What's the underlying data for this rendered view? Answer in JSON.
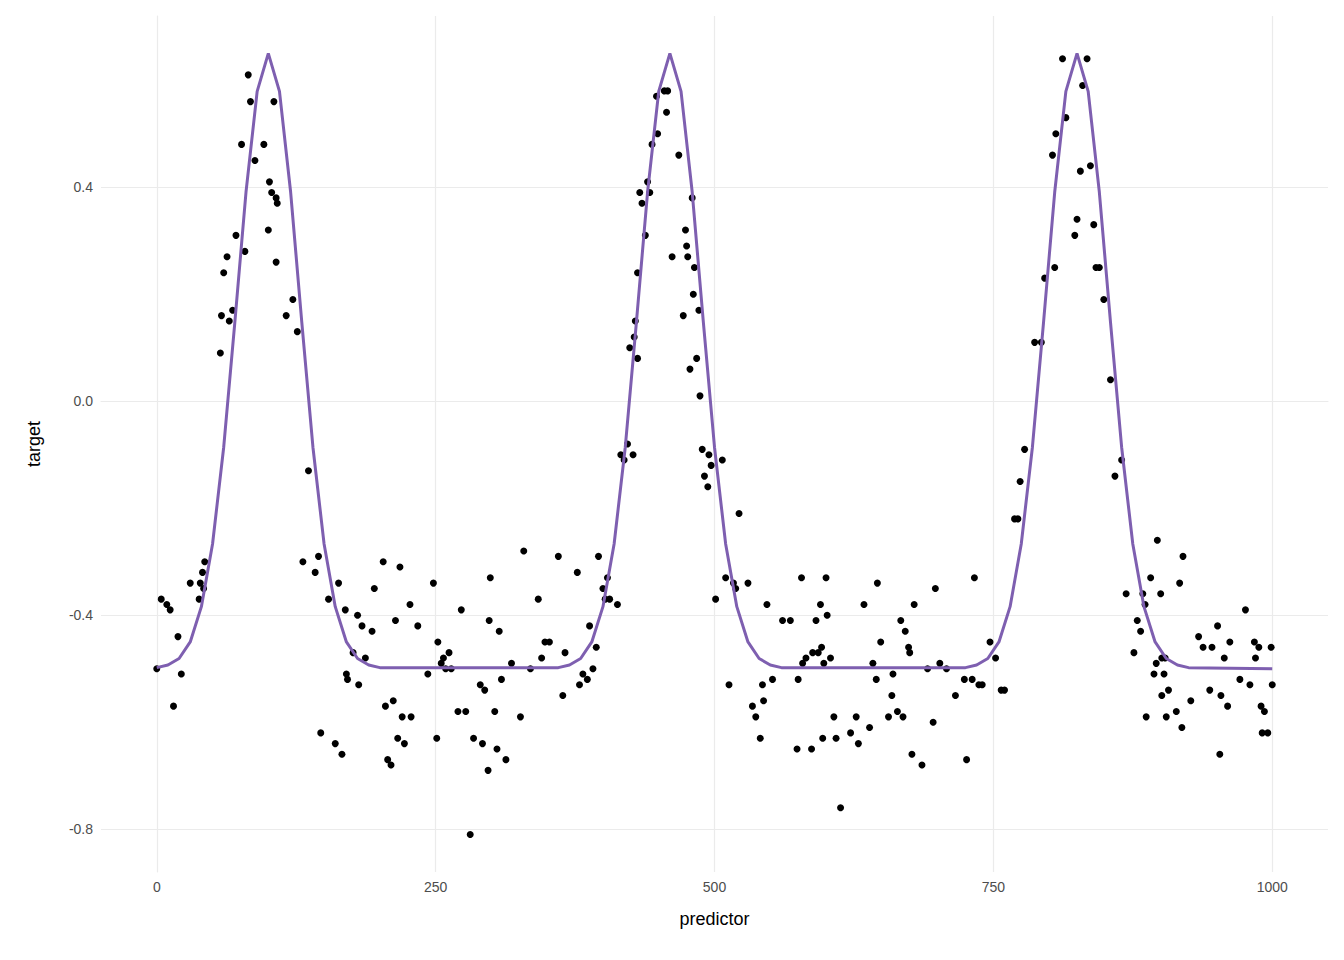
{
  "chart_data": {
    "type": "scatter",
    "x_label": "predictor",
    "y_label": "target",
    "xlim": [
      -50,
      1050
    ],
    "ylim": [
      -0.88,
      0.72
    ],
    "xticks": [
      0,
      250,
      500,
      750,
      1000
    ],
    "yticks": [
      -0.8,
      -0.4,
      {
        "value": 0,
        "label": "0.0"
      },
      0.4
    ],
    "grid": true,
    "series": [
      {
        "type": "scatter",
        "color": "#000000",
        "marker": "circle",
        "x": [
          0,
          4,
          9,
          12,
          15,
          19,
          22,
          30,
          38,
          39,
          41,
          42,
          43,
          57,
          58,
          60,
          63,
          65,
          68,
          71,
          76,
          79,
          82,
          84,
          88,
          96,
          100,
          101,
          103,
          105,
          107,
          108,
          107,
          116,
          122,
          126,
          131,
          136,
          142,
          145,
          147,
          154,
          160,
          163,
          166,
          169,
          170,
          171,
          176,
          180,
          181,
          184,
          187,
          193,
          195,
          203,
          205,
          207,
          210,
          212,
          214,
          216,
          218,
          220,
          222,
          227,
          228,
          234,
          243,
          248,
          251,
          252,
          255,
          257,
          259,
          262,
          264,
          270,
          273,
          277,
          281,
          284,
          290,
          292,
          294,
          297,
          298,
          299,
          303,
          305,
          307,
          309,
          313,
          318,
          326,
          329,
          335,
          342,
          345,
          348,
          352,
          360,
          364,
          366,
          377,
          379,
          382,
          386,
          388,
          391,
          394,
          396,
          400,
          402,
          404,
          406,
          413,
          416,
          419,
          422,
          424,
          427,
          428,
          429,
          431,
          431,
          433,
          435,
          438,
          440,
          442,
          444,
          448,
          449,
          455,
          458,
          457,
          462,
          468,
          472,
          474,
          475,
          476,
          478,
          480,
          481,
          482,
          484,
          486,
          487,
          489,
          491,
          494,
          495,
          497,
          501,
          507,
          510,
          513,
          517,
          519,
          522,
          530,
          534,
          537,
          541,
          543,
          544,
          547,
          552,
          561,
          568,
          574,
          575,
          578,
          579,
          582,
          587,
          588,
          591,
          593,
          595,
          596,
          597,
          598,
          600,
          601,
          604,
          607,
          609,
          613,
          622,
          627,
          629,
          634,
          639,
          642,
          645,
          646,
          649,
          656,
          659,
          660,
          664,
          667,
          669,
          671,
          674,
          675,
          677,
          679,
          686,
          691,
          696,
          698,
          702,
          708,
          716,
          724,
          726,
          731,
          733,
          737,
          740,
          747,
          752,
          757,
          760,
          769,
          772,
          774,
          778,
          787,
          793,
          796,
          803,
          806,
          805,
          815,
          812,
          823,
          825,
          828,
          830,
          834,
          837,
          840,
          842,
          845,
          849,
          855,
          859,
          865,
          869,
          876,
          879,
          882,
          884,
          886,
          887,
          891,
          894,
          896,
          897,
          900,
          901,
          901,
          903,
          904,
          905,
          907,
          914,
          917,
          919,
          920,
          927,
          934,
          938,
          944,
          946,
          951,
          953,
          954,
          957,
          960,
          962,
          971,
          976,
          980,
          984,
          985,
          988,
          990,
          991,
          993,
          996,
          999,
          1000
        ],
        "values": [
          -0.5,
          -0.37,
          -0.38,
          -0.39,
          -0.57,
          -0.44,
          -0.51,
          -0.34,
          -0.37,
          -0.34,
          -0.32,
          -0.35,
          -0.3,
          0.09,
          0.16,
          0.24,
          0.27,
          0.15,
          0.17,
          0.31,
          0.48,
          0.28,
          0.61,
          0.56,
          0.45,
          0.48,
          0.32,
          0.41,
          0.39,
          0.56,
          0.38,
          0.37,
          0.26,
          0.16,
          0.19,
          0.13,
          -0.3,
          -0.13,
          -0.32,
          -0.29,
          -0.62,
          -0.37,
          -0.64,
          -0.34,
          -0.66,
          -0.39,
          -0.51,
          -0.52,
          -0.47,
          -0.4,
          -0.53,
          -0.42,
          -0.48,
          -0.43,
          -0.35,
          -0.3,
          -0.57,
          -0.67,
          -0.68,
          -0.56,
          -0.41,
          -0.63,
          -0.31,
          -0.59,
          -0.64,
          -0.38,
          -0.59,
          -0.42,
          -0.51,
          -0.34,
          -0.63,
          -0.45,
          -0.49,
          -0.48,
          -0.5,
          -0.47,
          -0.5,
          -0.58,
          -0.39,
          -0.58,
          -0.81,
          -0.63,
          -0.53,
          -0.64,
          -0.54,
          -0.69,
          -0.41,
          -0.33,
          -0.58,
          -0.65,
          -0.43,
          -0.52,
          -0.67,
          -0.49,
          -0.59,
          -0.28,
          -0.5,
          -0.37,
          -0.48,
          -0.45,
          -0.45,
          -0.29,
          -0.55,
          -0.47,
          -0.32,
          -0.53,
          -0.51,
          -0.52,
          -0.42,
          -0.5,
          -0.46,
          -0.29,
          -0.35,
          -0.37,
          -0.33,
          -0.37,
          -0.38,
          -0.1,
          -0.11,
          -0.08,
          0.1,
          -0.1,
          0.12,
          0.15,
          0.08,
          0.24,
          0.39,
          0.37,
          0.31,
          0.41,
          0.39,
          0.48,
          0.57,
          0.5,
          0.58,
          0.58,
          0.54,
          0.27,
          0.46,
          0.16,
          0.32,
          0.29,
          0.27,
          0.06,
          0.38,
          0.2,
          0.25,
          0.08,
          0.17,
          0.01,
          -0.09,
          -0.14,
          -0.16,
          -0.1,
          -0.12,
          -0.37,
          -0.11,
          -0.33,
          -0.53,
          -0.34,
          -0.35,
          -0.21,
          -0.34,
          -0.57,
          -0.59,
          -0.63,
          -0.53,
          -0.56,
          -0.38,
          -0.52,
          -0.41,
          -0.41,
          -0.65,
          -0.52,
          -0.33,
          -0.49,
          -0.48,
          -0.65,
          -0.47,
          -0.41,
          -0.47,
          -0.38,
          -0.46,
          -0.63,
          -0.49,
          -0.33,
          -0.4,
          -0.48,
          -0.59,
          -0.63,
          -0.76,
          -0.62,
          -0.59,
          -0.64,
          -0.38,
          -0.61,
          -0.49,
          -0.52,
          -0.34,
          -0.45,
          -0.59,
          -0.55,
          -0.51,
          -0.58,
          -0.41,
          -0.59,
          -0.43,
          -0.46,
          -0.47,
          -0.66,
          -0.38,
          -0.68,
          -0.5,
          -0.6,
          -0.35,
          -0.49,
          -0.5,
          -0.55,
          -0.52,
          -0.67,
          -0.52,
          -0.33,
          -0.53,
          -0.53,
          -0.45,
          -0.48,
          -0.54,
          -0.54,
          -0.22,
          -0.22,
          -0.15,
          -0.09,
          0.11,
          0.11,
          0.23,
          0.46,
          0.5,
          0.25,
          0.53,
          0.64,
          0.31,
          0.34,
          0.43,
          0.59,
          0.64,
          0.44,
          0.33,
          0.25,
          0.25,
          0.19,
          0.04,
          -0.14,
          -0.11,
          -0.36,
          -0.47,
          -0.41,
          -0.43,
          -0.36,
          -0.38,
          -0.59,
          -0.33,
          -0.51,
          -0.49,
          -0.26,
          -0.36,
          -0.48,
          -0.55,
          -0.51,
          -0.48,
          -0.59,
          -0.54,
          -0.58,
          -0.34,
          -0.61,
          -0.29,
          -0.56,
          -0.44,
          -0.46,
          -0.54,
          -0.46,
          -0.42,
          -0.66,
          -0.55,
          -0.48,
          -0.57,
          -0.45,
          -0.52,
          -0.39,
          -0.53,
          -0.45,
          -0.48,
          -0.46,
          -0.57,
          -0.62,
          -0.58,
          -0.62,
          -0.46,
          -0.53
        ]
      },
      {
        "type": "line",
        "color": "#7e5fb0",
        "line_style": "solid",
        "x": [
          0,
          10,
          20,
          30,
          40,
          50,
          60,
          70,
          80,
          90,
          100,
          110,
          120,
          130,
          140,
          150,
          160,
          170,
          180,
          190,
          200,
          360,
          370,
          380,
          390,
          400,
          410,
          420,
          430,
          440,
          450,
          460,
          470,
          480,
          490,
          500,
          510,
          520,
          530,
          540,
          550,
          560,
          725,
          735,
          745,
          755,
          765,
          775,
          785,
          795,
          805,
          815,
          825,
          835,
          845,
          855,
          865,
          875,
          885,
          895,
          905,
          915,
          925,
          1000
        ],
        "values": [
          -0.498,
          -0.493,
          -0.481,
          -0.45,
          -0.384,
          -0.267,
          -0.086,
          0.148,
          0.391,
          0.579,
          0.65,
          0.579,
          0.391,
          0.148,
          -0.086,
          -0.267,
          -0.384,
          -0.45,
          -0.481,
          -0.493,
          -0.498,
          -0.498,
          -0.493,
          -0.481,
          -0.45,
          -0.384,
          -0.267,
          -0.086,
          0.148,
          0.391,
          0.579,
          0.65,
          0.579,
          0.391,
          0.148,
          -0.086,
          -0.267,
          -0.384,
          -0.45,
          -0.481,
          -0.493,
          -0.498,
          -0.498,
          -0.493,
          -0.481,
          -0.45,
          -0.384,
          -0.267,
          -0.086,
          0.148,
          0.391,
          0.579,
          0.65,
          0.579,
          0.391,
          0.148,
          -0.086,
          -0.267,
          -0.384,
          -0.45,
          -0.481,
          -0.493,
          -0.498,
          -0.5
        ]
      }
    ]
  }
}
